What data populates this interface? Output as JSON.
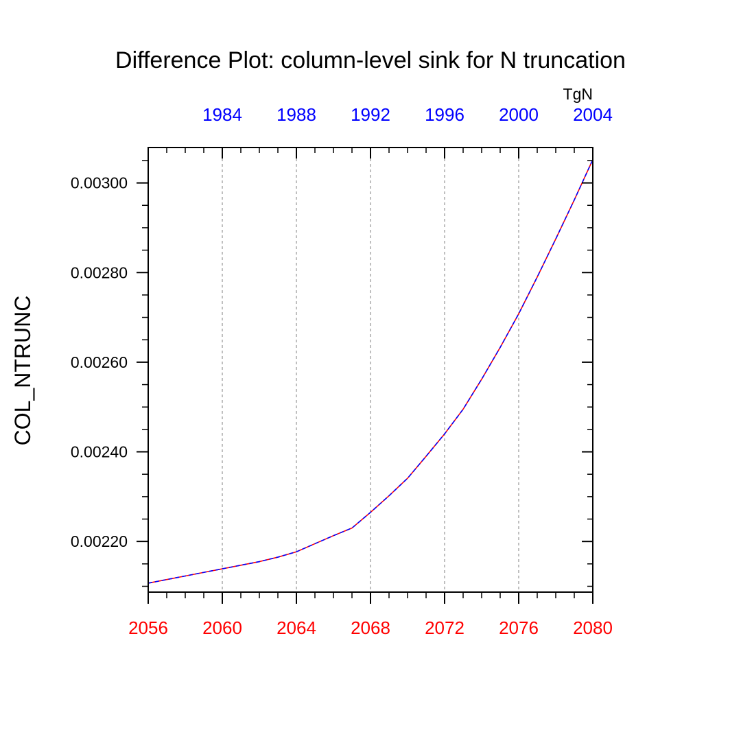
{
  "chart_data": {
    "type": "line",
    "title": "Difference Plot: column-level sink for N truncation",
    "ylabel": "COL_NTRUNC",
    "units": "TgN",
    "x": [
      2056,
      2057,
      2058,
      2059,
      2060,
      2061,
      2062,
      2063,
      2064,
      2065,
      2066,
      2067,
      2068,
      2069,
      2070,
      2071,
      2072,
      2073,
      2074,
      2075,
      2076,
      2077,
      2078,
      2079,
      2080
    ],
    "xlim": [
      2056,
      2080
    ],
    "ylim": [
      0.002087,
      0.003079
    ],
    "x_ticks": [
      2056,
      2060,
      2064,
      2068,
      2072,
      2076,
      2080
    ],
    "x_tick_labels": [
      "2056",
      "2060",
      "2064",
      "2068",
      "2072",
      "2076",
      "2080"
    ],
    "x_tick_color": "#ff0000",
    "top_x_tick_positions": [
      2060,
      2064,
      2068,
      2072,
      2076,
      2080
    ],
    "top_x_tick_labels": [
      "1984",
      "1988",
      "1992",
      "1996",
      "2000",
      "2004"
    ],
    "top_x_tick_color": "#0000ff",
    "y_ticks": [
      0.0022,
      0.0024,
      0.0026,
      0.0028,
      0.003
    ],
    "y_tick_labels": [
      "0.00220",
      "0.00240",
      "0.00260",
      "0.00280",
      "0.00300"
    ],
    "grid": "vertical dashed at major x ticks",
    "series": [
      {
        "color": "#ff0000",
        "style": "solid",
        "values": [
          0.002107,
          0.002115,
          0.002123,
          0.002131,
          0.002139,
          0.002147,
          0.002155,
          0.002165,
          0.002177,
          0.002195,
          0.002213,
          0.00223,
          0.002265,
          0.002302,
          0.002341,
          0.00239,
          0.00244,
          0.002495,
          0.002562,
          0.002633,
          0.002708,
          0.00279,
          0.002875,
          0.002962,
          0.003052
        ]
      },
      {
        "color": "#0000ff",
        "style": "dashed",
        "values": [
          0.002107,
          0.002115,
          0.002123,
          0.002131,
          0.002139,
          0.002147,
          0.002155,
          0.002165,
          0.002177,
          0.002195,
          0.002213,
          0.00223,
          0.002265,
          0.002302,
          0.002341,
          0.00239,
          0.00244,
          0.002495,
          0.002562,
          0.002633,
          0.002708,
          0.00279,
          0.002875,
          0.002962,
          0.003052
        ]
      }
    ]
  }
}
